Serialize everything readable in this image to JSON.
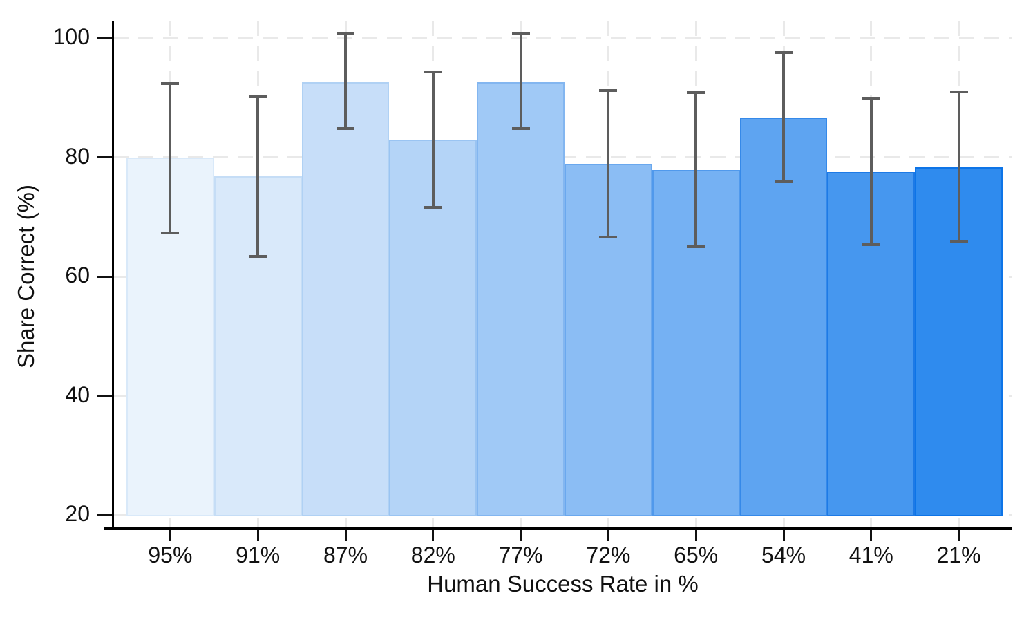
{
  "chart_data": {
    "type": "bar",
    "title": "",
    "xlabel": "Human Success Rate in %",
    "ylabel": "Share Correct (%)",
    "categories": [
      "95%",
      "91%",
      "87%",
      "82%",
      "77%",
      "72%",
      "65%",
      "54%",
      "41%",
      "21%"
    ],
    "values": [
      80.0,
      76.8,
      92.6,
      83.0,
      92.6,
      78.9,
      77.8,
      86.7,
      77.5,
      78.3
    ],
    "ci_low": [
      67.3,
      63.4,
      84.8,
      71.6,
      84.8,
      66.6,
      65.0,
      75.9,
      65.3,
      65.9
    ],
    "ci_high": [
      92.4,
      90.2,
      100.8,
      94.3,
      100.8,
      91.2,
      90.8,
      97.6,
      89.9,
      90.9
    ],
    "yticks": [
      20,
      40,
      60,
      80,
      100
    ],
    "ylim": [
      20,
      105
    ],
    "baseline": 20,
    "grid": true,
    "legend": "none",
    "bar_fill_colors": [
      "#eaf3fc",
      "#d9e9fa",
      "#c7def9",
      "#b4d4f7",
      "#a0c9f6",
      "#8bbdf4",
      "#75b1f3",
      "#5ea4f1",
      "#4697ef",
      "#2f8bee"
    ],
    "bar_border_colors": [
      "#d9e9f9",
      "#c5ddf6",
      "#b0d1f4",
      "#9ac4f2",
      "#83b6f0",
      "#6aa8ee",
      "#5099ec",
      "#3589e9",
      "#1d7ae6",
      "#0d74e7"
    ],
    "error_bar_color": "#5d5d5d",
    "grid_color": "#e9e9e9",
    "axis_color": "#000000",
    "text_color": "#111111"
  }
}
